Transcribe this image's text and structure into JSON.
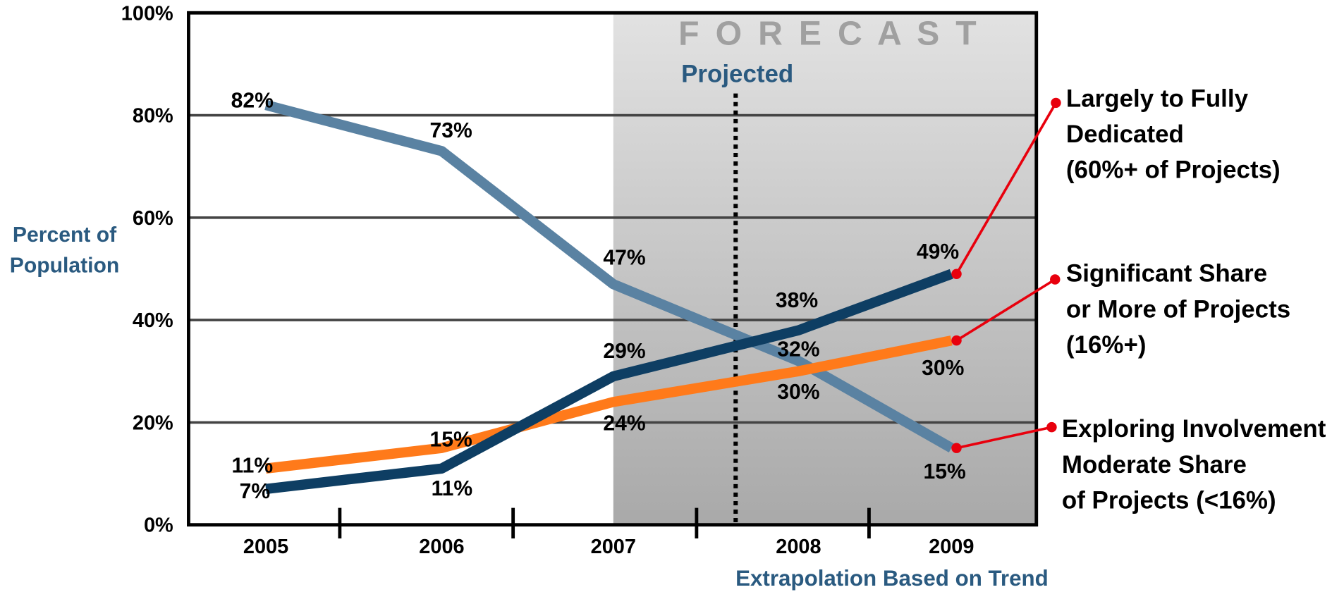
{
  "chart_data": {
    "type": "line",
    "y_label": [
      "Percent of",
      "Population"
    ],
    "forecast_label": "F O R E C A S T",
    "projected_label": "Projected",
    "x_note": "Extrapolation Based on Trend",
    "categories": [
      "2005",
      "2006",
      "2007",
      "2008",
      "2009"
    ],
    "ylim": [
      0,
      100
    ],
    "yticks": [
      {
        "value": 0,
        "label": "0%"
      },
      {
        "value": 20,
        "label": "20%"
      },
      {
        "value": 40,
        "label": "40%"
      },
      {
        "value": 60,
        "label": "60%"
      },
      {
        "value": 80,
        "label": "80%"
      },
      {
        "value": 100,
        "label": "100%"
      }
    ],
    "grid": true,
    "series": [
      {
        "name": [
          "Exploring Involvement",
          "Moderate Share",
          "of Projects (<16%)"
        ],
        "color": "#5a82a2",
        "values": [
          82,
          73,
          47,
          32,
          15
        ],
        "value_labels": [
          "82%",
          "73%",
          "47%",
          "32%",
          "15%"
        ]
      },
      {
        "name": [
          "Largely to Fully",
          "Dedicated",
          "(60%+ of Projects)"
        ],
        "color": "#0e3e63",
        "values": [
          7,
          11,
          29,
          38,
          49
        ],
        "value_labels": [
          "7%",
          "11%",
          "29%",
          "38%",
          "49%"
        ]
      },
      {
        "name": [
          "Significant Share",
          "or More of Projects",
          "(16%+)"
        ],
        "color": "#ff7a1a",
        "values": [
          11,
          15,
          24,
          30,
          36
        ],
        "value_labels": [
          "11%",
          "15%",
          "24%",
          "30%",
          null
        ]
      }
    ],
    "annotations": [
      {
        "text": "30%"
      }
    ]
  }
}
